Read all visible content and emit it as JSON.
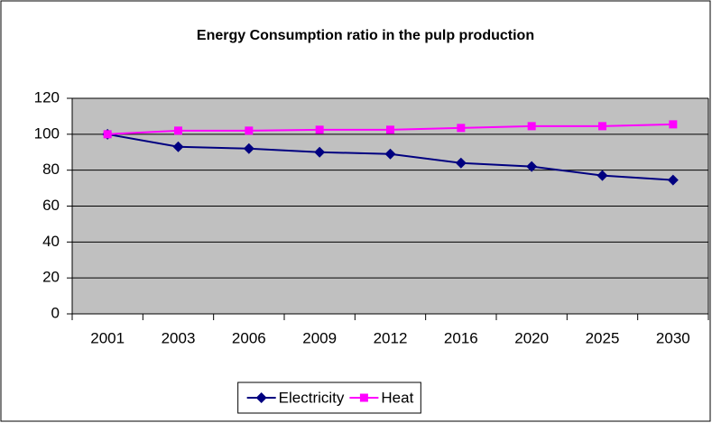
{
  "chart_data": {
    "type": "line",
    "title": "Energy Consumption ratio in the pulp production",
    "categories": [
      "2001",
      "2003",
      "2006",
      "2009",
      "2012",
      "2016",
      "2020",
      "2025",
      "2030"
    ],
    "series": [
      {
        "name": "Electricity",
        "color": "#000080",
        "marker": "diamond",
        "values": [
          100,
          93,
          92,
          90,
          89,
          84,
          82,
          77,
          74.5
        ]
      },
      {
        "name": "Heat",
        "color": "#ff00ff",
        "marker": "square",
        "values": [
          100,
          102,
          102,
          102.5,
          102.5,
          103.5,
          104.5,
          104.5,
          105.5
        ]
      }
    ],
    "ylim": [
      0,
      120
    ],
    "yticks": [
      0,
      20,
      40,
      60,
      80,
      100,
      120
    ],
    "grid": true,
    "legend": "bottom"
  }
}
